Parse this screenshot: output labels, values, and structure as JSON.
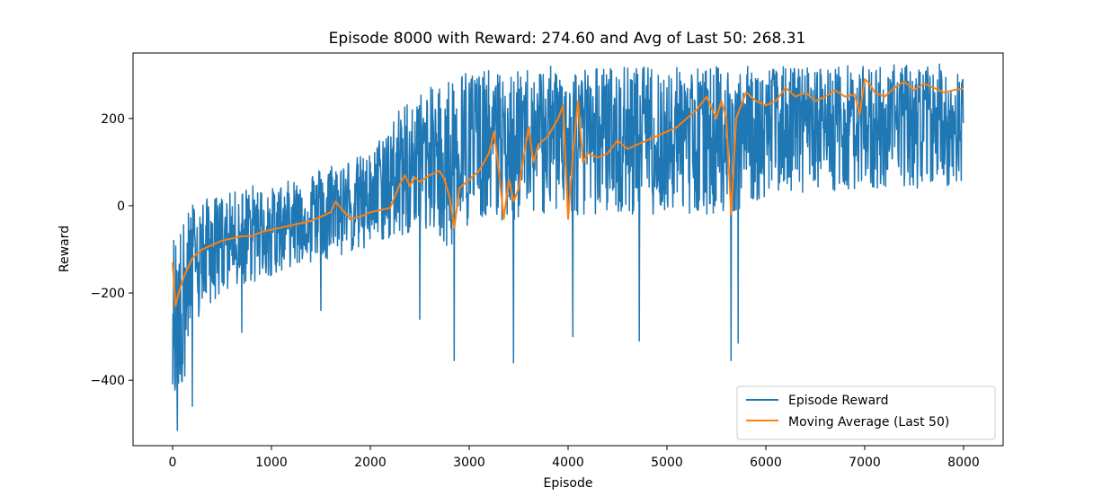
{
  "chart_data": {
    "type": "line",
    "title": "Episode 8000 with Reward: 274.60 and Avg of Last 50: 268.31",
    "xlabel": "Episode",
    "ylabel": "Reward",
    "xlim": [
      -400,
      8400
    ],
    "ylim": [
      -550,
      350
    ],
    "x_ticks": [
      0,
      1000,
      2000,
      3000,
      4000,
      5000,
      6000,
      7000,
      8000
    ],
    "x_tick_labels": [
      "0",
      "1000",
      "2000",
      "3000",
      "4000",
      "5000",
      "6000",
      "7000",
      "8000"
    ],
    "y_ticks": [
      -400,
      -200,
      0,
      200
    ],
    "y_tick_labels": [
      "−400",
      "−200",
      "0",
      "200"
    ],
    "grid": false,
    "legend_position": "lower-right",
    "series": [
      {
        "name": "Episode Reward",
        "color": "#1f77b4",
        "envelope": {
          "x": [
            0,
            100,
            200,
            400,
            600,
            800,
            1000,
            1200,
            1400,
            1600,
            1800,
            2000,
            2200,
            2400,
            2600,
            2800,
            3000,
            3200,
            3400,
            3600,
            3800,
            4000,
            4200,
            4400,
            4600,
            4800,
            5000,
            5200,
            5400,
            5600,
            5800,
            6000,
            6200,
            6400,
            6600,
            6800,
            7000,
            7200,
            7400,
            7600,
            7800,
            8000
          ],
          "upper": [
            -60,
            -40,
            10,
            20,
            30,
            50,
            40,
            60,
            80,
            100,
            110,
            120,
            200,
            250,
            270,
            300,
            320,
            310,
            300,
            320,
            320,
            320,
            320,
            320,
            320,
            320,
            320,
            320,
            320,
            320,
            320,
            320,
            320,
            320,
            320,
            325,
            320,
            325,
            325,
            325,
            325,
            325
          ],
          "lower": [
            -480,
            -420,
            -300,
            -220,
            -200,
            -180,
            -160,
            -140,
            -130,
            -120,
            -110,
            -100,
            -80,
            -60,
            -60,
            -100,
            -40,
            -20,
            -40,
            -20,
            -20,
            -30,
            -20,
            -20,
            -20,
            -20,
            -20,
            -20,
            -20,
            -20,
            0,
            20,
            30,
            30,
            30,
            30,
            30,
            40,
            40,
            40,
            40,
            50
          ]
        },
        "spikes_down": [
          {
            "x": 50,
            "y": -515
          },
          {
            "x": 200,
            "y": -460
          },
          {
            "x": 700,
            "y": -290
          },
          {
            "x": 1500,
            "y": -240
          },
          {
            "x": 2500,
            "y": -260
          },
          {
            "x": 2850,
            "y": -355
          },
          {
            "x": 3450,
            "y": -360
          },
          {
            "x": 4050,
            "y": -300
          },
          {
            "x": 4720,
            "y": -310
          },
          {
            "x": 5650,
            "y": -355
          },
          {
            "x": 5720,
            "y": -315
          }
        ]
      },
      {
        "name": "Moving Average (Last 50)",
        "color": "#ff7f0e",
        "x": [
          0,
          30,
          60,
          120,
          200,
          300,
          400,
          500,
          600,
          700,
          800,
          900,
          1000,
          1100,
          1200,
          1300,
          1400,
          1500,
          1600,
          1650,
          1700,
          1800,
          1900,
          2000,
          2100,
          2200,
          2300,
          2350,
          2400,
          2450,
          2500,
          2600,
          2700,
          2750,
          2800,
          2850,
          2900,
          3000,
          3100,
          3200,
          3250,
          3300,
          3350,
          3400,
          3450,
          3500,
          3600,
          3650,
          3700,
          3800,
          3900,
          3950,
          4000,
          4050,
          4100,
          4150,
          4200,
          4300,
          4400,
          4500,
          4600,
          4700,
          4800,
          4900,
          5000,
          5100,
          5200,
          5300,
          5400,
          5500,
          5550,
          5600,
          5650,
          5700,
          5800,
          5900,
          6000,
          6100,
          6200,
          6300,
          6400,
          6500,
          6600,
          6700,
          6800,
          6900,
          6950,
          7000,
          7050,
          7100,
          7200,
          7300,
          7400,
          7500,
          7600,
          7700,
          7800,
          7900,
          8000
        ],
        "values": [
          -130,
          -230,
          -200,
          -160,
          -120,
          -100,
          -90,
          -80,
          -75,
          -70,
          -70,
          -60,
          -55,
          -50,
          -45,
          -40,
          -35,
          -25,
          -15,
          10,
          -5,
          -30,
          -25,
          -15,
          -10,
          -5,
          50,
          70,
          45,
          65,
          55,
          70,
          80,
          60,
          20,
          -50,
          40,
          60,
          80,
          120,
          170,
          80,
          -30,
          60,
          10,
          40,
          180,
          100,
          140,
          160,
          200,
          230,
          -30,
          120,
          240,
          100,
          120,
          110,
          120,
          150,
          130,
          140,
          150,
          160,
          170,
          180,
          200,
          220,
          250,
          200,
          240,
          200,
          -20,
          200,
          260,
          240,
          230,
          240,
          270,
          250,
          260,
          240,
          250,
          265,
          250,
          255,
          210,
          290,
          280,
          260,
          250,
          270,
          285,
          265,
          280,
          270,
          260,
          265,
          268
        ]
      }
    ]
  }
}
